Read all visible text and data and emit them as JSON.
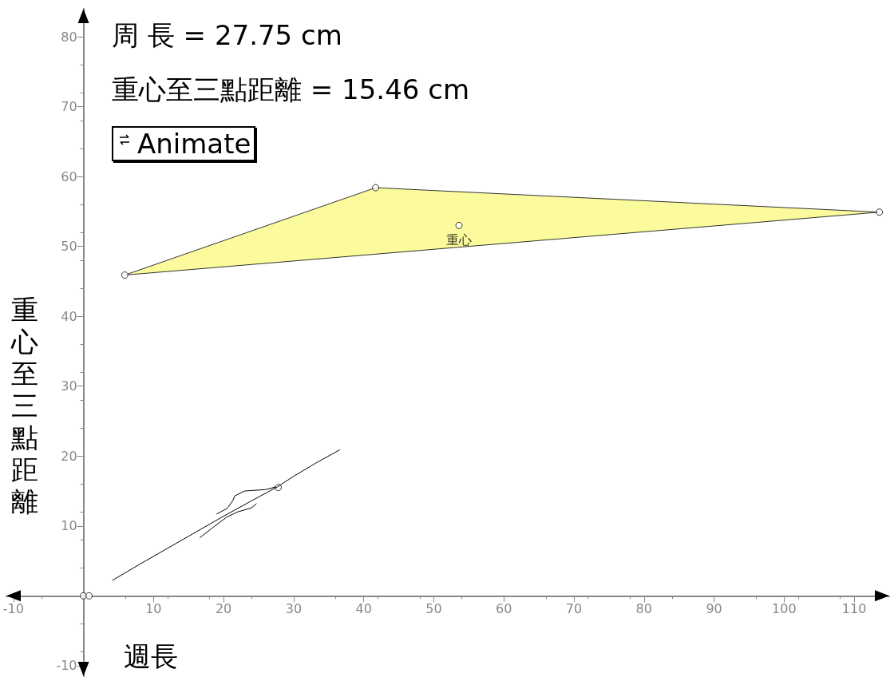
{
  "chart_data": {
    "type": "line",
    "xlabel": "週長",
    "ylabel": "重心至三點距離",
    "annotations": [
      "周 長 = 27.75 cm",
      "重心至三點距離 = 15.46 cm",
      "Animate"
    ],
    "xlim": [
      -11,
      115
    ],
    "ylim": [
      -11.5,
      84
    ],
    "xticks": [
      -10,
      10,
      20,
      30,
      40,
      50,
      60,
      70,
      80,
      90,
      100,
      110
    ],
    "yticks": [
      -10,
      10,
      20,
      30,
      40,
      50,
      60,
      70,
      80
    ],
    "grid": false,
    "series": [
      {
        "type": "area",
        "color": "#fbfb9e",
        "x": [
          5.9,
          41.7,
          113.6
        ],
        "values": [
          45.9,
          58.4,
          54.9
        ]
      },
      {
        "type": "scatter",
        "color": "#000000",
        "marker": "circle",
        "x": [
          5.9,
          41.7,
          113.6
        ],
        "values": [
          45.9,
          58.4,
          54.9
        ]
      },
      {
        "type": "scatter",
        "color": "#000000",
        "marker": "circle",
        "x": [
          53.6
        ],
        "values": [
          53.0
        ],
        "value_labels": [
          "重心"
        ]
      },
      {
        "color": "#000000",
        "marker": "none",
        "x": [
          4.1,
          8,
          12,
          16,
          20,
          24,
          27.7,
          30,
          33,
          36.6
        ],
        "values": [
          2.2,
          4.5,
          6.8,
          9.1,
          11.4,
          13.6,
          15.6,
          17.1,
          18.9,
          20.9
        ]
      },
      {
        "color": "#000000",
        "marker": "none",
        "x": [
          19,
          20.5,
          21.3,
          21.6,
          23,
          26,
          27.5
        ],
        "values": [
          11.7,
          12.5,
          13.6,
          14.3,
          15,
          15.2,
          15.6
        ]
      },
      {
        "color": "#000000",
        "marker": "none",
        "x": [
          16.6,
          18.5,
          20.5,
          22,
          24,
          24.7
        ],
        "values": [
          8.3,
          9.8,
          11.3,
          12,
          12.6,
          13.2
        ]
      },
      {
        "type": "scatter",
        "color": "#000000",
        "marker": "circle",
        "x": [
          27.8,
          0,
          0.8
        ],
        "values": [
          15.5,
          0,
          0
        ]
      }
    ]
  }
}
